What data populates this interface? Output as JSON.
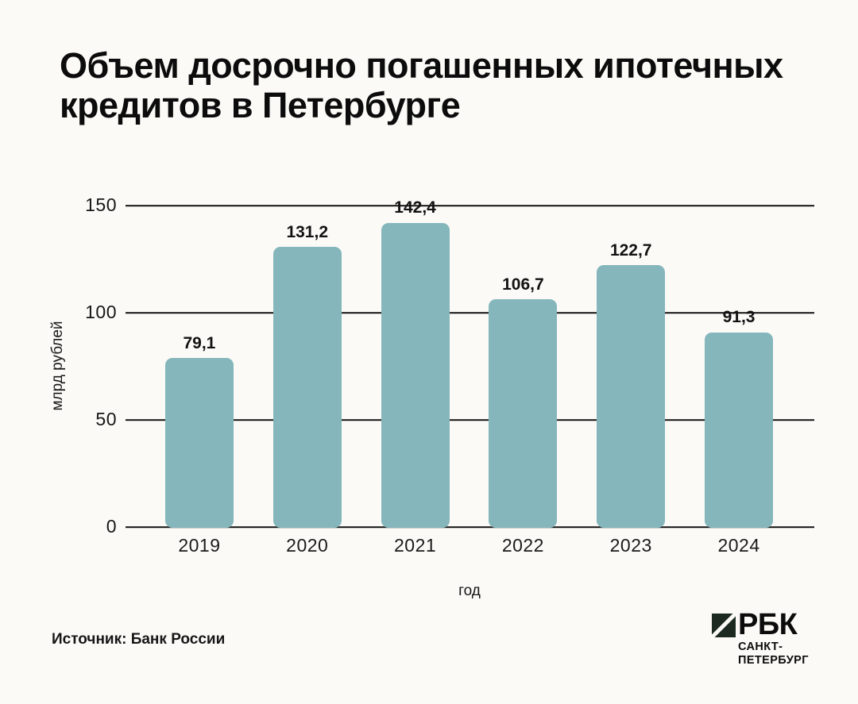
{
  "page": {
    "background": "#fbfaf7"
  },
  "header": {
    "title": "Объем досрочно погашенных ипотечных кредитов в Петербурге"
  },
  "chart_data": {
    "type": "bar",
    "title": "Объем досрочно погашенных ипотечных кредитов в Петербурге",
    "categories": [
      "2019",
      "2020",
      "2021",
      "2022",
      "2023",
      "2024"
    ],
    "values": [
      79.1,
      131.2,
      142.4,
      106.7,
      122.7,
      91.3
    ],
    "value_labels": [
      "79,1",
      "131,2",
      "142,4",
      "106,7",
      "122,7",
      "91,3"
    ],
    "xlabel": "год",
    "ylabel": "млрд рублей",
    "ylim": [
      0,
      150
    ],
    "yticks": [
      0,
      50,
      100,
      150
    ],
    "grid": true,
    "legend": "none",
    "bar_color": "#85b6bb",
    "gridline_color": "#141414"
  },
  "footer": {
    "source": "Источник: Банк России"
  },
  "logo": {
    "brand": "РБК",
    "region_line1": "САНКТ-",
    "region_line2": "ПЕТЕРБУРГ",
    "square_color": "#1b2921",
    "slash_color": "#fbfaf7"
  }
}
